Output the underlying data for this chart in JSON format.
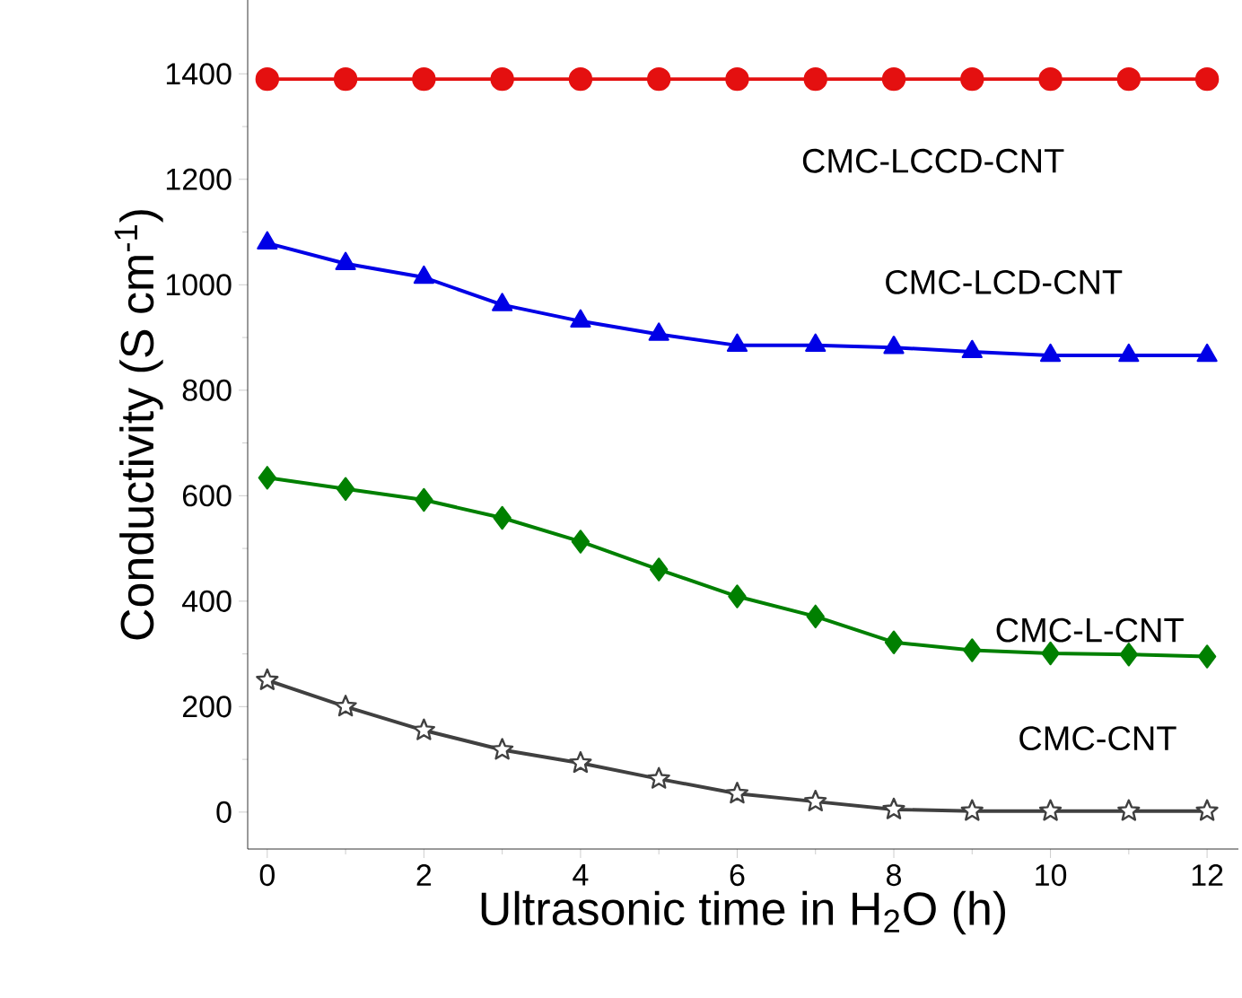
{
  "chart_data": {
    "type": "line",
    "xlabel": "Ultrasonic time in H$_{2}$O (h)",
    "ylabel": "Conductivity (S cm$^{-1}$)",
    "x": [
      0,
      1,
      2,
      3,
      4,
      5,
      6,
      7,
      8,
      9,
      10,
      11,
      12
    ],
    "series": [
      {
        "name": "CMC-LCCD-CNT",
        "color": "#e41010",
        "marker": "circle",
        "values": [
          1390,
          1390,
          1390,
          1390,
          1390,
          1390,
          1390,
          1390,
          1390,
          1390,
          1390,
          1390,
          1390
        ]
      },
      {
        "name": "CMC-LCD-CNT",
        "color": "#0000e6",
        "marker": "triangle",
        "values": [
          1079,
          1040,
          1014,
          962,
          931,
          906,
          885,
          885,
          881,
          873,
          866,
          866,
          866
        ]
      },
      {
        "name": "CMC-L-CNT",
        "color": "#008000",
        "marker": "diamond",
        "values": [
          634,
          613,
          592,
          558,
          513,
          460,
          409,
          371,
          322,
          307,
          301,
          299,
          295
        ]
      },
      {
        "name": "CMC-CNT",
        "color": "#404040",
        "marker": "star",
        "values": [
          250,
          200,
          155,
          118,
          93,
          63,
          35,
          20,
          5,
          2,
          2,
          2,
          2
        ]
      }
    ],
    "xlim": [
      -0.25,
      12.4
    ],
    "ylim": [
      -70,
      1540
    ],
    "xticks": [
      0,
      2,
      4,
      6,
      8,
      10,
      12
    ],
    "yticks": [
      0,
      200,
      400,
      600,
      800,
      1000,
      1200,
      1400
    ],
    "grid": false
  }
}
